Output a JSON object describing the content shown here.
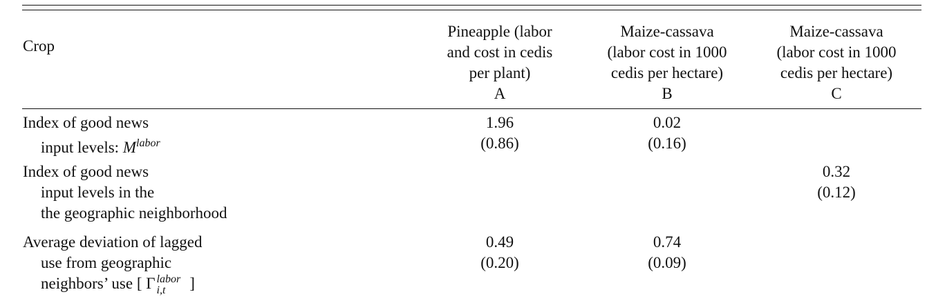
{
  "header": {
    "crop_label": "Crop",
    "columns": [
      {
        "lines": [
          "Pineapple (labor",
          "and cost in cedis",
          "per plant)"
        ],
        "letter": "A"
      },
      {
        "lines": [
          "Maize-cassava",
          "(labor cost in 1000",
          "cedis per hectare)"
        ],
        "letter": "B"
      },
      {
        "lines": [
          "Maize-cassava",
          "(labor cost in 1000",
          "cedis per hectare)"
        ],
        "letter": "C"
      }
    ]
  },
  "rows": [
    {
      "label_lines": [
        "Index of good news",
        "input levels: "
      ],
      "symbol": "M",
      "symbol_sup": "labor",
      "A": {
        "coef": "1.96",
        "se": "(0.86)"
      },
      "B": {
        "coef": "0.02",
        "se": "(0.16)"
      }
    },
    {
      "label_lines": [
        "Index of good news",
        "input levels in the",
        "the geographic neighborhood"
      ],
      "C": {
        "coef": "0.32",
        "se": "(0.12)"
      }
    },
    {
      "label_lines": [
        "Average deviation of lagged",
        "use from geographic",
        "neighbors’ use [ "
      ],
      "symbol": "Γ",
      "symbol_sup": "labor",
      "symbol_sub": "i,t",
      "label_close": " ]",
      "A": {
        "coef": "0.49",
        "se": "(0.20)"
      },
      "B": {
        "coef": "0.74",
        "se": "(0.09)"
      }
    }
  ]
}
